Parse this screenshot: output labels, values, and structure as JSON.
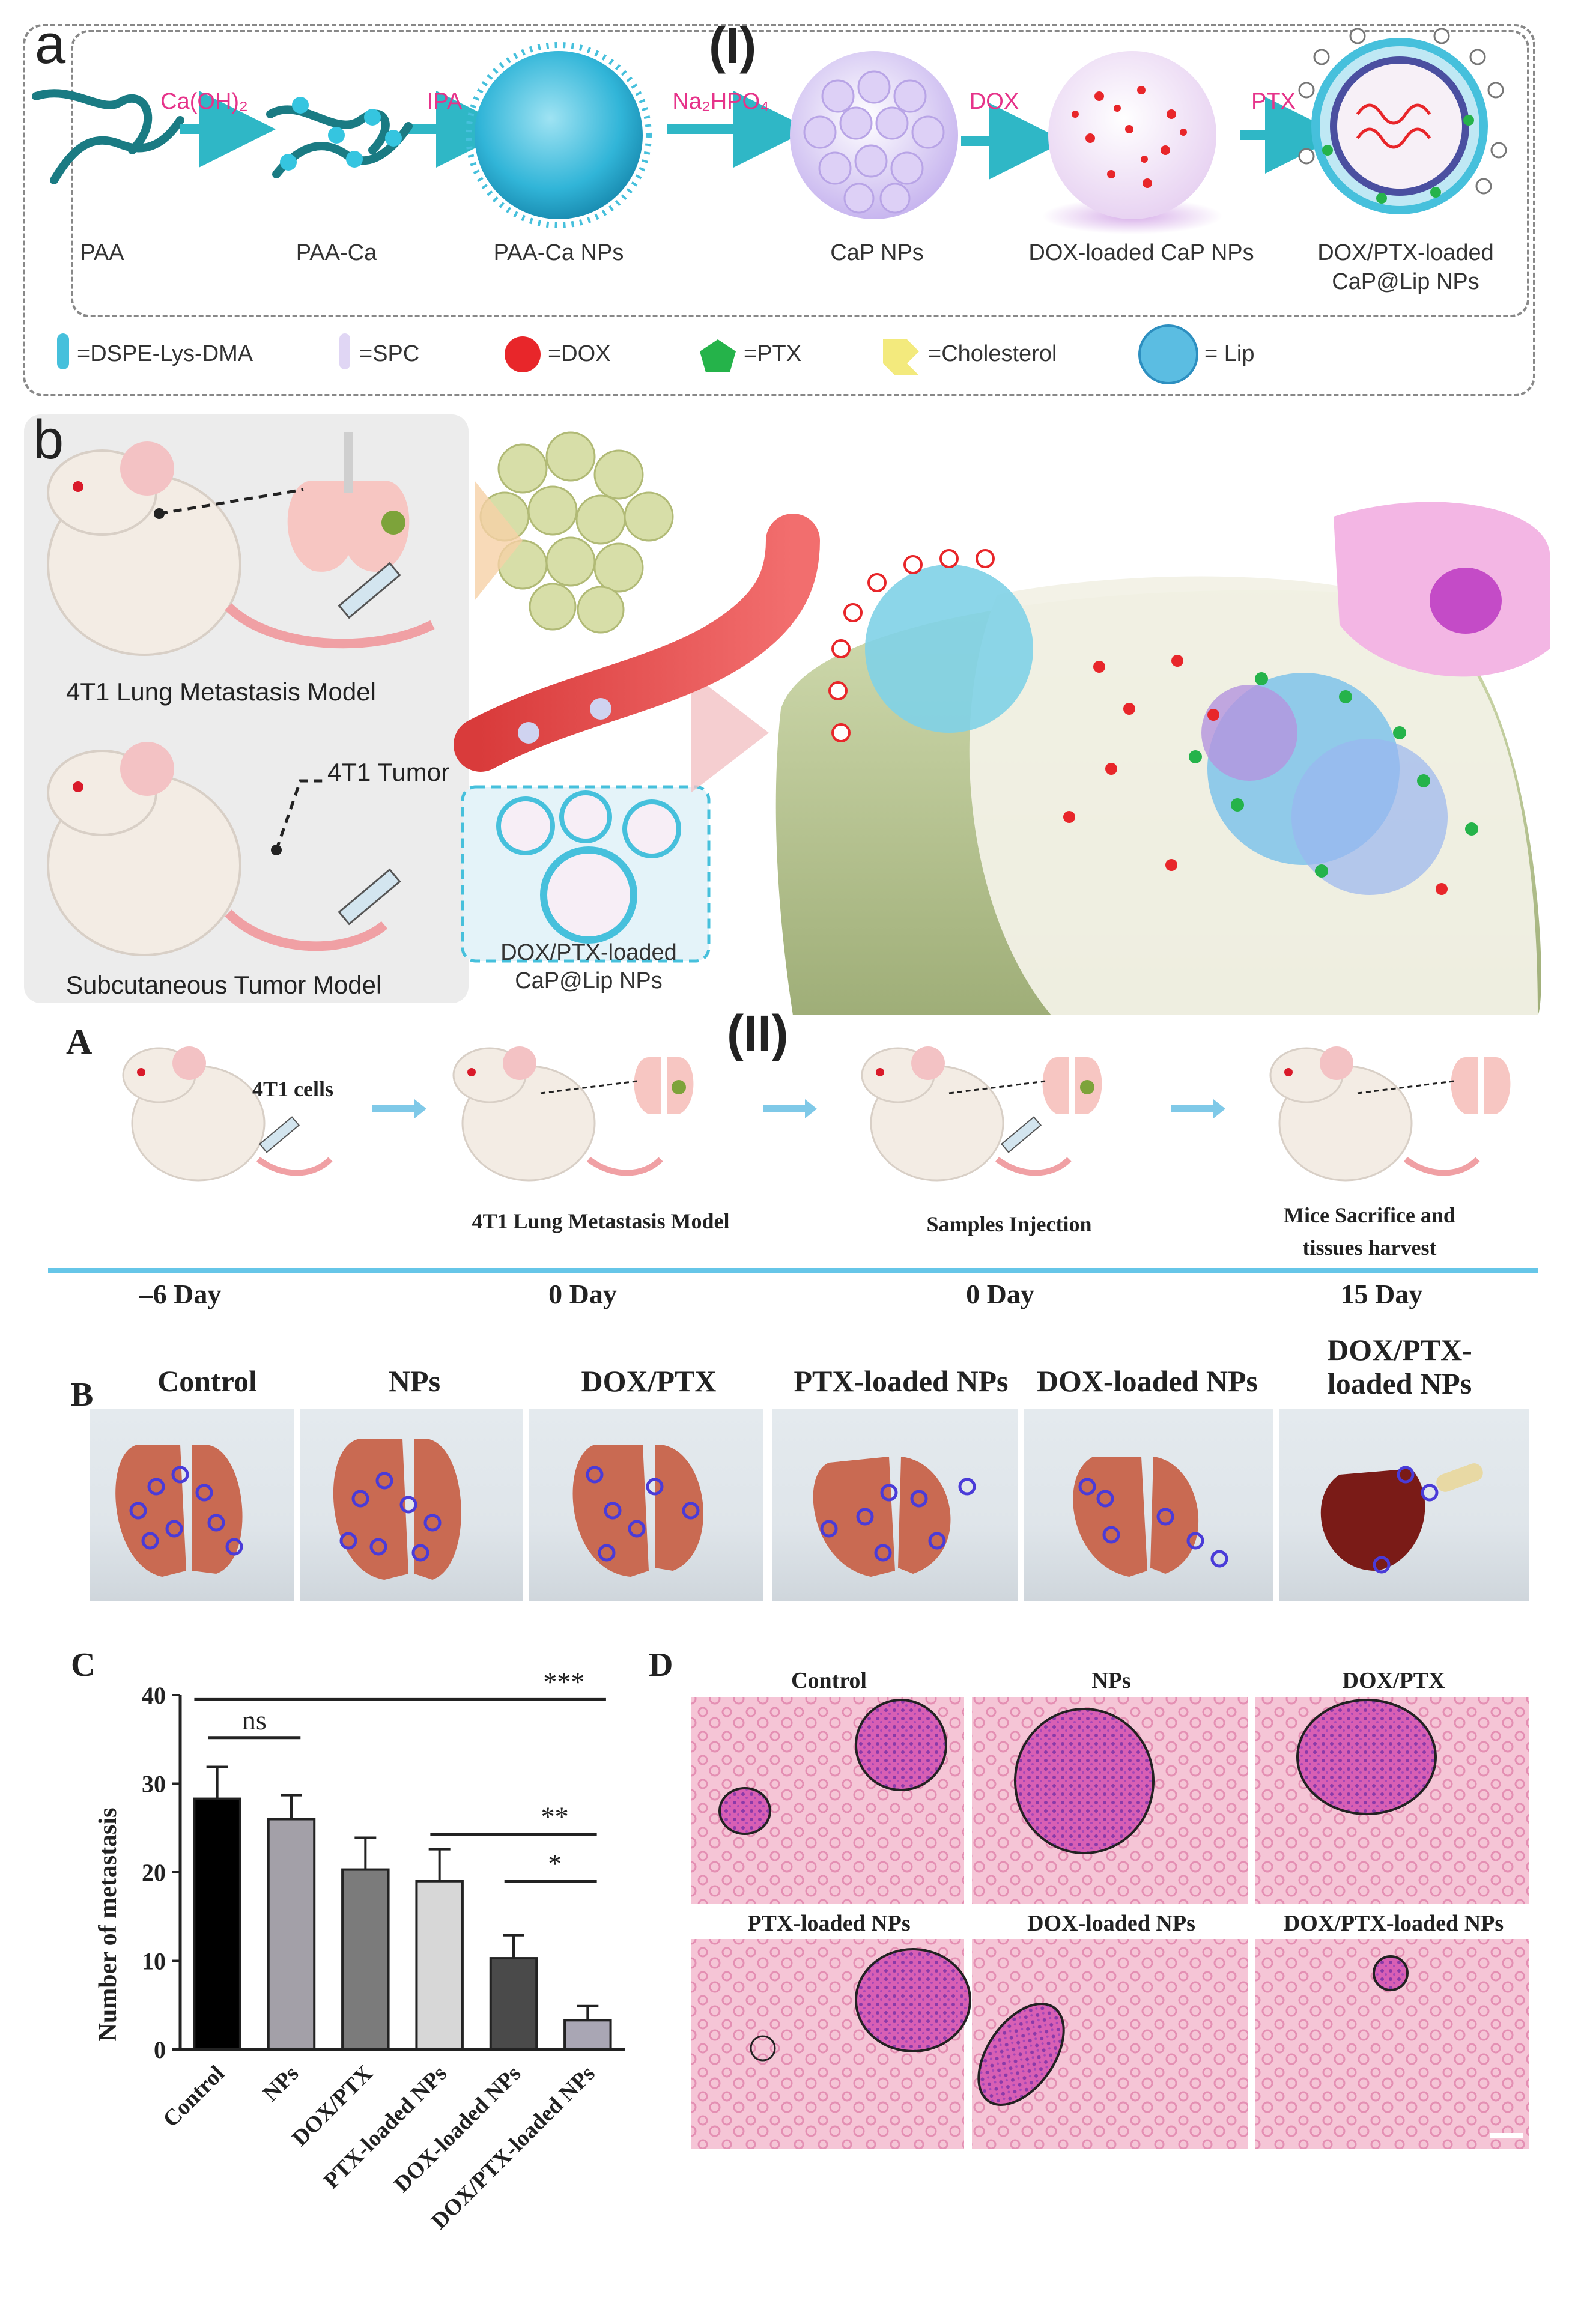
{
  "section_I": {
    "marker": "(I)",
    "panel_a": {
      "letter": "a",
      "labels": [
        "PAA",
        "PAA-Ca",
        "PAA-Ca  NPs",
        "CaP  NPs",
        "DOX-loaded CaP  NPs",
        "DOX/PTX-loaded",
        "CaP@Lip  NPs"
      ],
      "arrows": [
        "Ca(OH)₂",
        "IPA",
        "Na₂HPO₄",
        "DOX",
        "PTX"
      ],
      "legend": [
        "=DSPE-Lys-DMA",
        "=SPC",
        "=DOX",
        "=PTX",
        "=Cholesterol",
        "= Lip"
      ]
    },
    "panel_b": {
      "letter": "b",
      "lung_model": "4T1 Lung Metastasis Model",
      "tumor_label": "4T1 Tumor",
      "subq_model": "Subcutaneous Tumor Model",
      "np_label_1": "DOX/PTX-loaded",
      "np_label_2": "CaP@Lip  NPs"
    },
    "colors": {
      "accent_pink": "#e6338a",
      "arrow_teal": "#2fb7c6",
      "particle_blue": "#46c0dc",
      "dox_red": "#e8262a",
      "ptx_green": "#25b34a"
    }
  },
  "section_II": {
    "marker": "(II)",
    "panel_A": {
      "letter": "A",
      "cells_label": "4T1 cells",
      "steps": [
        "4T1 Lung Metastasis Model",
        "Samples Injection",
        "Mice Sacrifice and",
        "tissues harvest"
      ],
      "days": [
        "–6 Day",
        "0 Day",
        "0 Day",
        "15 Day"
      ]
    },
    "panel_B": {
      "letter": "B",
      "groups": [
        "Control",
        "NPs",
        "DOX/PTX",
        "PTX-loaded NPs",
        "DOX-loaded NPs",
        "DOX/PTX-",
        "loaded NPs"
      ]
    },
    "panel_D": {
      "letter": "D",
      "titles": [
        "Control",
        "NPs",
        "DOX/PTX",
        "PTX-loaded NPs",
        "DOX-loaded NPs",
        "DOX/PTX-loaded NPs"
      ]
    }
  },
  "chart_data": {
    "type": "bar",
    "panel_letter": "C",
    "ylabel": "Number of metastasis",
    "categories": [
      "Control",
      "NPs",
      "DOX/PTX",
      "PTX-loaded NPs",
      "DOX-loaded NPs",
      "DOX/PTX-loaded NPs"
    ],
    "values": [
      28.3,
      26.0,
      20.3,
      19.0,
      10.3,
      3.3
    ],
    "errors": [
      3.6,
      2.7,
      3.6,
      3.6,
      2.6,
      1.6
    ],
    "bar_colors": [
      "#000000",
      "#a3a0a8",
      "#7b7b7b",
      "#d7d7d7",
      "#4a4a4a",
      "#a9a6b4"
    ],
    "ylim": [
      0,
      40
    ],
    "yticks": [
      0,
      10,
      20,
      30,
      40
    ],
    "significance": [
      {
        "from": 0,
        "to": 1,
        "label": "ns"
      },
      {
        "from": 0,
        "to": 5,
        "label": "***"
      },
      {
        "from": 3,
        "to": 5,
        "label": "**"
      },
      {
        "from": 4,
        "to": 5,
        "label": "*"
      }
    ]
  }
}
